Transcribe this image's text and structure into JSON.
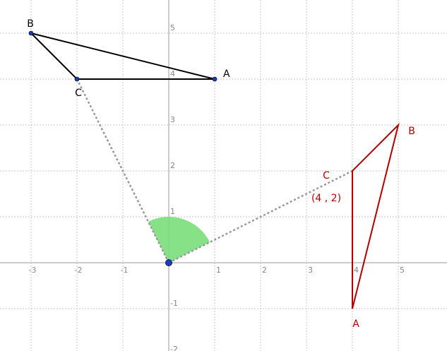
{
  "grid": {
    "xticks": [
      -3,
      -2,
      -1,
      1,
      2,
      3,
      4,
      5
    ],
    "yticks": [
      -2,
      -1,
      1,
      2,
      3,
      4,
      5
    ]
  },
  "triangles": [
    {
      "color": "#000000",
      "points": [
        {
          "label": "A",
          "x": 1,
          "y": 4
        },
        {
          "label": "B",
          "x": -3,
          "y": 5
        },
        {
          "label": "C",
          "x": -2,
          "y": 4
        }
      ]
    },
    {
      "color": "#b00000",
      "points": [
        {
          "label": "A",
          "x": 4,
          "y": -1
        },
        {
          "label": "B",
          "x": 5,
          "y": 3
        },
        {
          "label": "C",
          "x": 4,
          "y": 2
        }
      ],
      "coordinate_label": "(4 , 2)"
    }
  ],
  "center": {
    "x": 0,
    "y": 0
  },
  "angle": {
    "color": "#7adf7a",
    "radius": 1
  }
}
